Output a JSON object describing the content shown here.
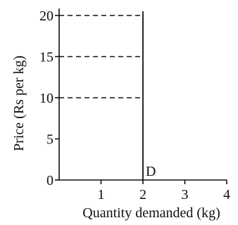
{
  "chart_data": {
    "type": "line",
    "title": "",
    "xlabel": "Quantity demanded (kg)",
    "ylabel": "Price (Rs per kg)",
    "xlim": [
      0,
      4
    ],
    "ylim": [
      0,
      20
    ],
    "x_ticks": [
      1,
      2,
      3,
      4
    ],
    "x_tick_labels": [
      "1",
      "2",
      "3",
      "4"
    ],
    "y_ticks": [
      0,
      5,
      10,
      15,
      20
    ],
    "y_tick_labels": [
      "0",
      "5",
      "10",
      "15",
      "20"
    ],
    "series": [
      {
        "name": "D",
        "x": [
          2,
          2
        ],
        "y": [
          0,
          20.5
        ]
      }
    ],
    "guide_lines": [
      {
        "y": 10,
        "x": [
          0,
          2
        ]
      },
      {
        "y": 15,
        "x": [
          0,
          2
        ]
      },
      {
        "y": 20,
        "x": [
          0,
          2
        ]
      }
    ],
    "grid": false,
    "legend": "none",
    "colors": {
      "line": "#111111",
      "text": "#111111",
      "background": "#ffffff"
    }
  }
}
